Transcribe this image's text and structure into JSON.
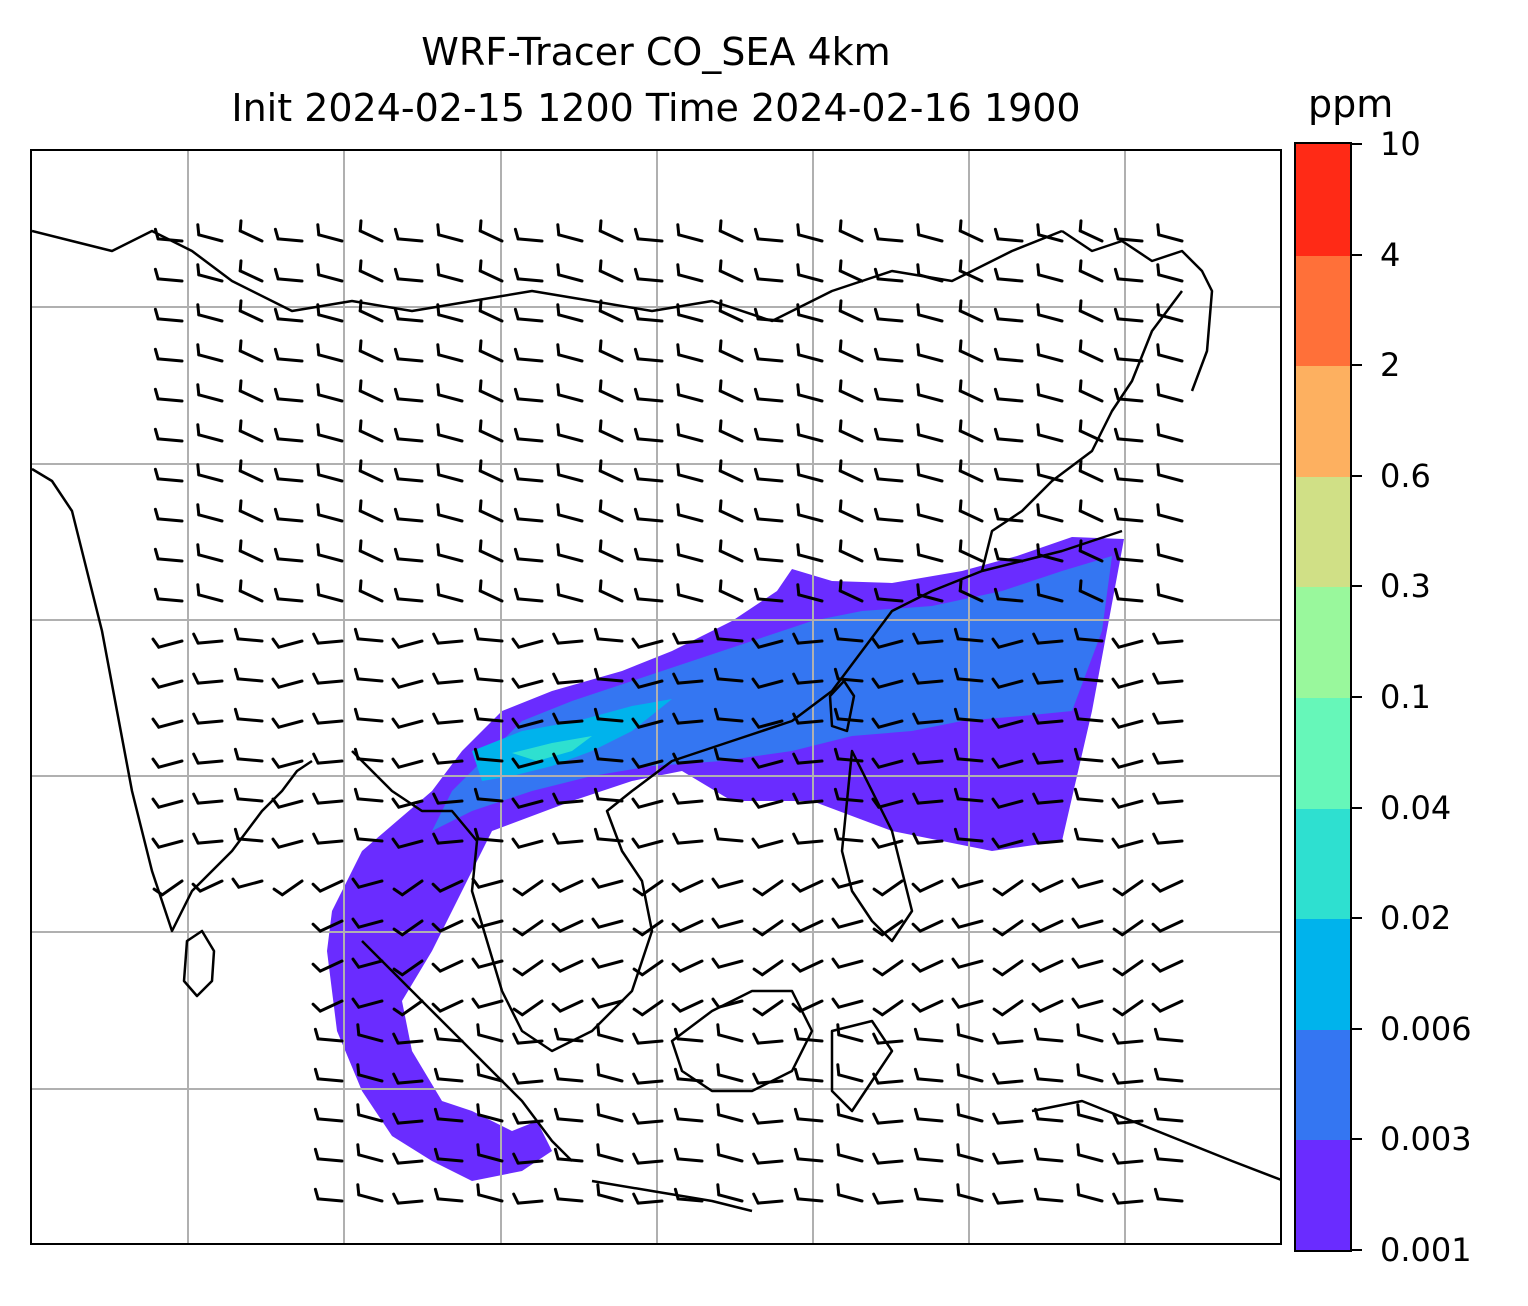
{
  "title_line1": "WRF-Tracer CO_SEA 4km",
  "title_line2": "Init 2024-02-15 1200 Time 2024-02-16 1900",
  "colorbar": {
    "unit": "ppm",
    "levels": [
      "0.001",
      "0.003",
      "0.006",
      "0.02",
      "0.04",
      "0.1",
      "0.3",
      "0.6",
      "2",
      "4",
      "10"
    ],
    "colors": [
      "#6a2cff",
      "#3476f2",
      "#00b3ec",
      "#2ee0d0",
      "#66f7b9",
      "#99f89c",
      "#d0e086",
      "#fdb060",
      "#ff7039",
      "#ff2a16"
    ]
  },
  "map": {
    "field": "CO_SEA tracer concentration",
    "overlays": [
      "coastlines",
      "country-borders",
      "lat-lon-gridlines",
      "wind-barbs"
    ],
    "gridlines": true
  },
  "colors": {
    "gridline": "#b0b0b0",
    "coastline": "#000000",
    "barb": "#000000"
  }
}
